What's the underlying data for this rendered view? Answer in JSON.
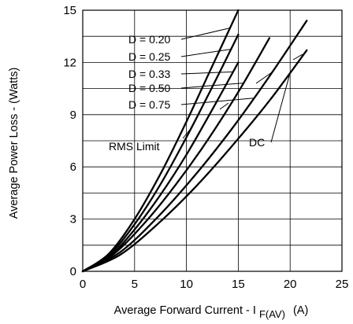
{
  "chart_data": {
    "type": "line",
    "xlabel_main": "Average Forward Current - I",
    "xlabel_sub": "F(AV)",
    "xlabel_unit": "(A)",
    "ylabel": "Average Power Loss - (Watts)",
    "xlim": [
      0,
      25
    ],
    "ylim": [
      0,
      15
    ],
    "xticks": [
      "0",
      "5",
      "10",
      "15",
      "20",
      "25"
    ],
    "yticks": [
      "0",
      "3",
      "6",
      "9",
      "12",
      "15"
    ],
    "grid": true,
    "series": [
      {
        "name": "D = 0.20",
        "x": [
          0,
          2.5,
          5,
          7.5,
          10,
          12.5,
          15
        ],
        "y": [
          0,
          1.0,
          3.0,
          5.6,
          8.6,
          11.8,
          15.0
        ]
      },
      {
        "name": "D = 0.25",
        "x": [
          0,
          2.5,
          5,
          7.5,
          10,
          12.5,
          15
        ],
        "y": [
          0,
          0.9,
          2.7,
          5.0,
          7.7,
          10.6,
          13.6
        ]
      },
      {
        "name": "D = 0.33",
        "x": [
          0,
          2.5,
          5,
          7.5,
          10,
          12.5,
          15
        ],
        "y": [
          0,
          0.8,
          2.4,
          4.4,
          6.7,
          9.3,
          12.0
        ]
      },
      {
        "name": "D = 0.50",
        "x": [
          0,
          3,
          6,
          9,
          12,
          15,
          18
        ],
        "y": [
          0,
          1.0,
          2.8,
          5.0,
          7.5,
          10.3,
          13.4
        ]
      },
      {
        "name": "D = 0.75",
        "x": [
          0,
          3.6,
          7.2,
          10.8,
          14.4,
          18,
          21.6
        ],
        "y": [
          0,
          1.1,
          3.1,
          5.5,
          8.2,
          11.2,
          14.4
        ]
      },
      {
        "name": "DC",
        "x": [
          0,
          3.6,
          7.2,
          10.8,
          14.4,
          18,
          21.6
        ],
        "y": [
          0,
          0.95,
          2.7,
          4.8,
          7.2,
          9.8,
          12.7
        ]
      }
    ],
    "annotations": [
      {
        "text": "D = 0.20",
        "target_series": 0
      },
      {
        "text": "D = 0.25",
        "target_series": 1
      },
      {
        "text": "D = 0.33",
        "target_series": 2
      },
      {
        "text": "D = 0.50",
        "target_series": 3
      },
      {
        "text": "D = 0.75",
        "target_series": 4
      },
      {
        "text": "DC",
        "target_series": 5
      },
      {
        "text": "RMS Limit"
      }
    ]
  }
}
